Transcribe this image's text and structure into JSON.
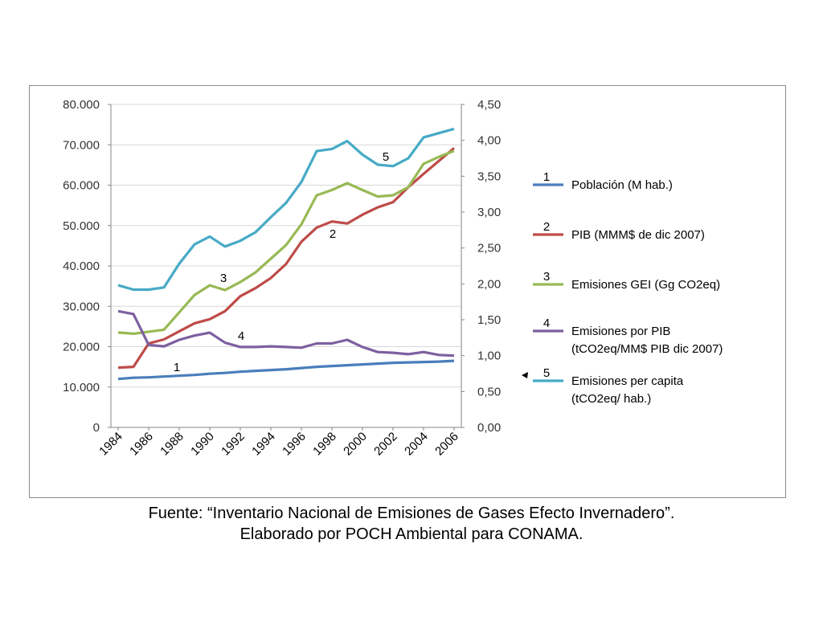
{
  "chart_data": {
    "type": "line",
    "x": [
      1984,
      1985,
      1986,
      1987,
      1988,
      1989,
      1990,
      1991,
      1992,
      1993,
      1994,
      1995,
      1996,
      1997,
      1998,
      1999,
      2000,
      2001,
      2002,
      2003,
      2004,
      2005,
      2006
    ],
    "x_tick_labels": [
      "1984",
      "1986",
      "1988",
      "1990",
      "1992",
      "1994",
      "1996",
      "1998",
      "2000",
      "2002",
      "2004",
      "2006"
    ],
    "y_left": {
      "ylim": [
        0,
        80000
      ],
      "tick_values": [
        0,
        10000,
        20000,
        30000,
        40000,
        50000,
        60000,
        70000,
        80000
      ],
      "tick_labels": [
        "0",
        "10.000",
        "20.000",
        "30.000",
        "40.000",
        "50.000",
        "60.000",
        "70.000",
        "80.000"
      ]
    },
    "y_right": {
      "ylim": [
        0,
        4.5
      ],
      "tick_values": [
        0,
        0.5,
        1,
        1.5,
        2,
        2.5,
        3,
        3.5,
        4,
        4.5
      ],
      "tick_labels": [
        "0,00",
        "0,50",
        "1,00",
        "1,50",
        "2,00",
        "2,50",
        "3,00",
        "3,50",
        "4,00",
        "4,50"
      ]
    },
    "series": [
      {
        "id": "1",
        "name": "Población (M  hab.)",
        "axis": "left",
        "color": "#4a7ebb",
        "values": [
          12000,
          12300,
          12400,
          12600,
          12800,
          13000,
          13300,
          13500,
          13800,
          14000,
          14200,
          14400,
          14700,
          15000,
          15200,
          15400,
          15600,
          15800,
          16000,
          16100,
          16200,
          16300,
          16500
        ]
      },
      {
        "id": "2",
        "name": "PIB (MMM$  de dic 2007)",
        "axis": "left",
        "color": "#be4b48",
        "values": [
          14800,
          15000,
          20800,
          21800,
          23800,
          25800,
          26800,
          28800,
          32500,
          34500,
          37000,
          40500,
          46000,
          49500,
          51000,
          50500,
          52700,
          54500,
          55800,
          59500,
          62800,
          66000,
          69200
        ]
      },
      {
        "id": "3",
        "name": "Emisiones GEI  (Gg CO2eq)",
        "axis": "left",
        "color": "#98b954",
        "values": [
          23500,
          23200,
          23700,
          24200,
          28500,
          32800,
          35200,
          34000,
          36000,
          38400,
          41800,
          45200,
          50300,
          57500,
          58800,
          60500,
          58800,
          57200,
          57500,
          59500,
          65300,
          67000,
          68500
        ]
      },
      {
        "id": "4",
        "name": "Emisiones por PIB",
        "name_line2": "(tCO2eq/MM$ PIB dic 2007)",
        "axis": "right",
        "color": "#7d60a0",
        "values": [
          1.62,
          1.58,
          1.15,
          1.13,
          1.22,
          1.28,
          1.32,
          1.18,
          1.12,
          1.12,
          1.13,
          1.12,
          1.11,
          1.17,
          1.17,
          1.22,
          1.12,
          1.05,
          1.04,
          1.02,
          1.05,
          1.01,
          1.0
        ]
      },
      {
        "id": "5",
        "name": "Emisiones per capita",
        "name_line2": "(tCO2eq/ hab.)",
        "axis": "right",
        "color": "#46aac5",
        "values": [
          1.98,
          1.92,
          1.92,
          1.95,
          2.28,
          2.55,
          2.66,
          2.52,
          2.6,
          2.72,
          2.93,
          3.13,
          3.42,
          3.85,
          3.88,
          3.99,
          3.8,
          3.66,
          3.64,
          3.75,
          4.04,
          4.1,
          4.16
        ]
      }
    ],
    "annotations": [
      {
        "label": "1",
        "series": "1"
      },
      {
        "label": "2",
        "series": "2"
      },
      {
        "label": "3",
        "series": "3"
      },
      {
        "label": "4",
        "series": "4"
      },
      {
        "label": "5",
        "series": "5"
      }
    ],
    "legend_position": "right"
  },
  "caption": {
    "line1": "Fuente: “Inventario Nacional de Emisiones de Gases Efecto Invernadero”.",
    "line2": "Elaborado por POCH Ambiental para CONAMA."
  }
}
